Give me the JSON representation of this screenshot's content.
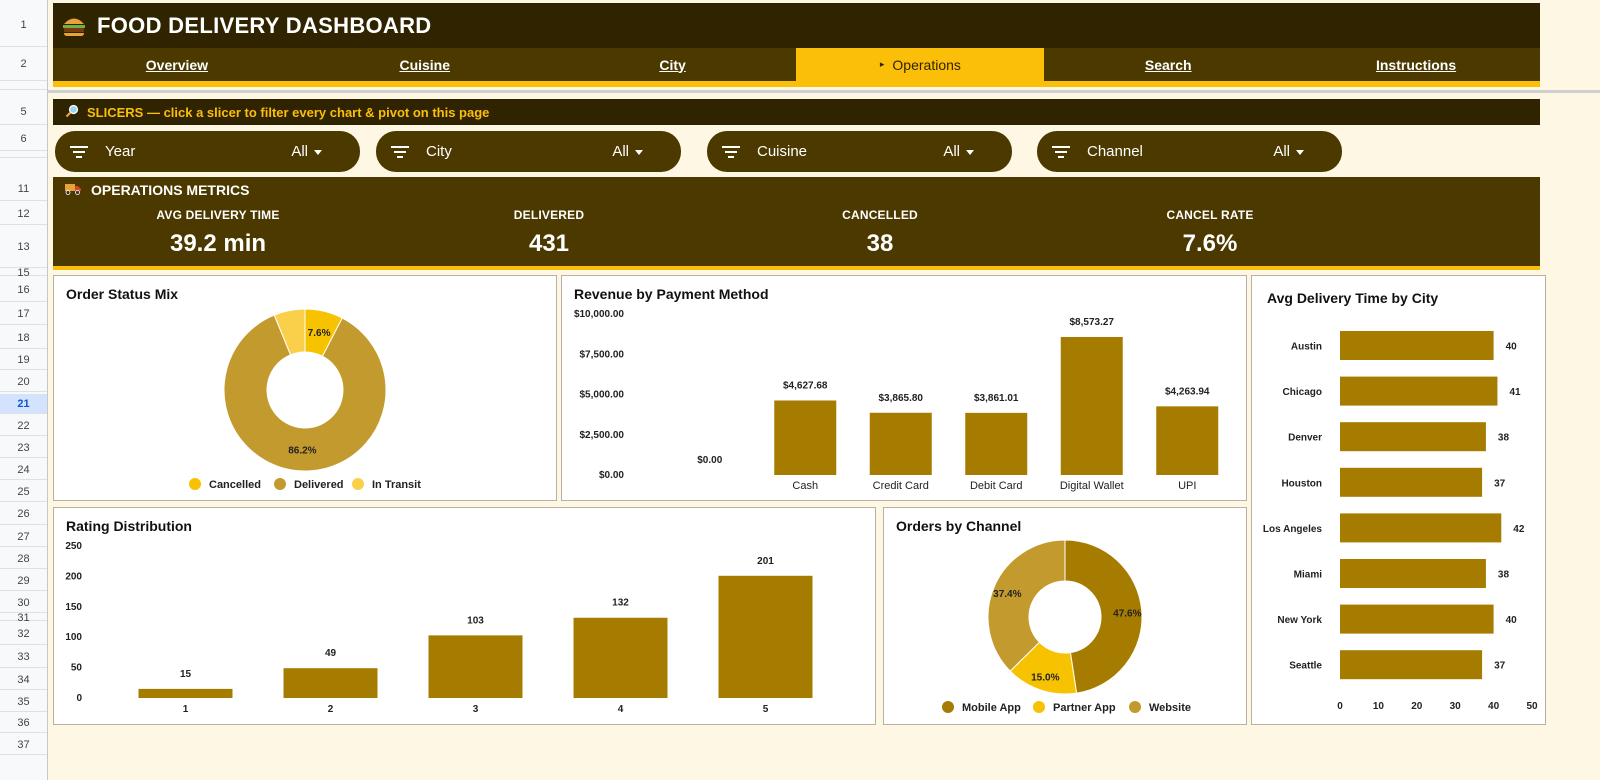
{
  "sheet": {
    "rows": [
      "1",
      "2",
      "",
      "5",
      "6",
      "",
      "11",
      "12",
      "13",
      "15",
      "16",
      "17",
      "18",
      "19",
      "20",
      "21",
      "22",
      "23",
      "24",
      "25",
      "26",
      "27",
      "28",
      "29",
      "30",
      "31",
      "32",
      "33",
      "34",
      "35",
      "36",
      "37"
    ],
    "selected_row": "21"
  },
  "header": {
    "title": "FOOD DELIVERY DASHBOARD",
    "icon": "burger-icon"
  },
  "nav": {
    "tabs": [
      {
        "label": "Overview"
      },
      {
        "label": "Cuisine"
      },
      {
        "label": "City"
      },
      {
        "label": "Operations",
        "active": true,
        "marker": "▸"
      },
      {
        "label": "Search"
      },
      {
        "label": "Instructions"
      }
    ]
  },
  "slicers": {
    "banner_text": "SLICERS — click a slicer to filter every chart & pivot on this page",
    "items": [
      {
        "label": "Year",
        "value": "All"
      },
      {
        "label": "City",
        "value": "All"
      },
      {
        "label": "Cuisine",
        "value": "All"
      },
      {
        "label": "Channel",
        "value": "All"
      }
    ]
  },
  "metrics": {
    "title": "OPERATIONS METRICS",
    "items": [
      {
        "label": "AVG DELIVERY TIME",
        "value": "39.2 min"
      },
      {
        "label": "DELIVERED",
        "value": "431"
      },
      {
        "label": "CANCELLED",
        "value": "38"
      },
      {
        "label": "CANCEL RATE",
        "value": "7.6%"
      }
    ]
  },
  "colors": {
    "dark": "#2f2300",
    "brown": "#4b3900",
    "accent": "#fbbf09",
    "bar": "#a67c00",
    "olive": "#c29a2e",
    "gold": "#f7c200"
  },
  "chart_data": [
    {
      "type": "pie",
      "title": "Order Status Mix",
      "donut": true,
      "categories": [
        "Cancelled",
        "Delivered",
        "In Transit"
      ],
      "values": [
        7.6,
        86.2,
        6.2
      ],
      "labels": [
        "7.6%",
        "86.2%",
        ""
      ],
      "colors": [
        "#f7c200",
        "#c29a2e",
        "#fad04b"
      ],
      "legend": "bottom"
    },
    {
      "type": "bar",
      "title": "Revenue by Payment Method",
      "categories": [
        "",
        "Cash",
        "Credit Card",
        "Debit Card",
        "Digital Wallet",
        "UPI"
      ],
      "values": [
        0,
        4627.68,
        3865.8,
        3861.01,
        8573.27,
        4263.94
      ],
      "labels": [
        "$0.00",
        "$4,627.68",
        "$3,865.80",
        "$3,861.01",
        "$8,573.27",
        "$4,263.94"
      ],
      "yticks": [
        "$0.00",
        "$2,500.00",
        "$5,000.00",
        "$7,500.00",
        "$10,000.00"
      ],
      "ylim": [
        0,
        10000
      ]
    },
    {
      "type": "bar",
      "orientation": "horizontal",
      "title": "Avg Delivery Time by City",
      "categories": [
        "Austin",
        "Chicago",
        "Denver",
        "Houston",
        "Los Angeles",
        "Miami",
        "New York",
        "Seattle"
      ],
      "values": [
        40,
        41,
        38,
        37,
        42,
        38,
        40,
        37
      ],
      "xticks": [
        "0",
        "10",
        "20",
        "30",
        "40",
        "50"
      ],
      "xlim": [
        0,
        50
      ]
    },
    {
      "type": "bar",
      "title": "Rating Distribution",
      "categories": [
        "1",
        "2",
        "3",
        "4",
        "5"
      ],
      "values": [
        15,
        49,
        103,
        132,
        201
      ],
      "yticks": [
        "0",
        "50",
        "100",
        "150",
        "200",
        "250"
      ],
      "ylim": [
        0,
        250
      ]
    },
    {
      "type": "pie",
      "title": "Orders by Channel",
      "donut": true,
      "categories": [
        "Mobile App",
        "Partner App",
        "Website"
      ],
      "values": [
        47.6,
        15.0,
        37.4
      ],
      "labels": [
        "47.6%",
        "15.0%",
        "37.4%"
      ],
      "colors": [
        "#a67c00",
        "#f7c200",
        "#c29a2e"
      ],
      "legend": "bottom"
    }
  ]
}
